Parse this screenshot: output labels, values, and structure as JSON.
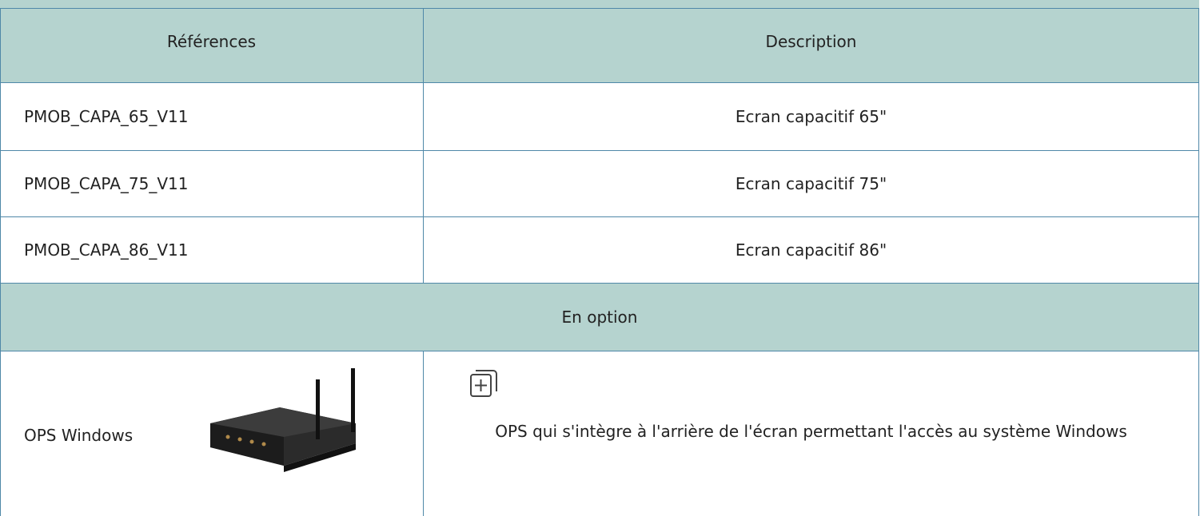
{
  "table": {
    "headers": [
      "Références",
      "Description"
    ],
    "rows": [
      [
        "PMOB_CAPA_65_V11",
        "Ecran capacitif 65\""
      ],
      [
        "PMOB_CAPA_75_V11",
        "Ecran capacitif 75\""
      ],
      [
        "PMOB_CAPA_86_V11",
        "Ecran capacitif 86\""
      ]
    ],
    "option_header": "En option",
    "option_rows": [
      [
        "OPS Windows",
        "OPS qui s'intègre à l'arrière de l'écran permettant l'accès au système Windows"
      ]
    ]
  }
}
